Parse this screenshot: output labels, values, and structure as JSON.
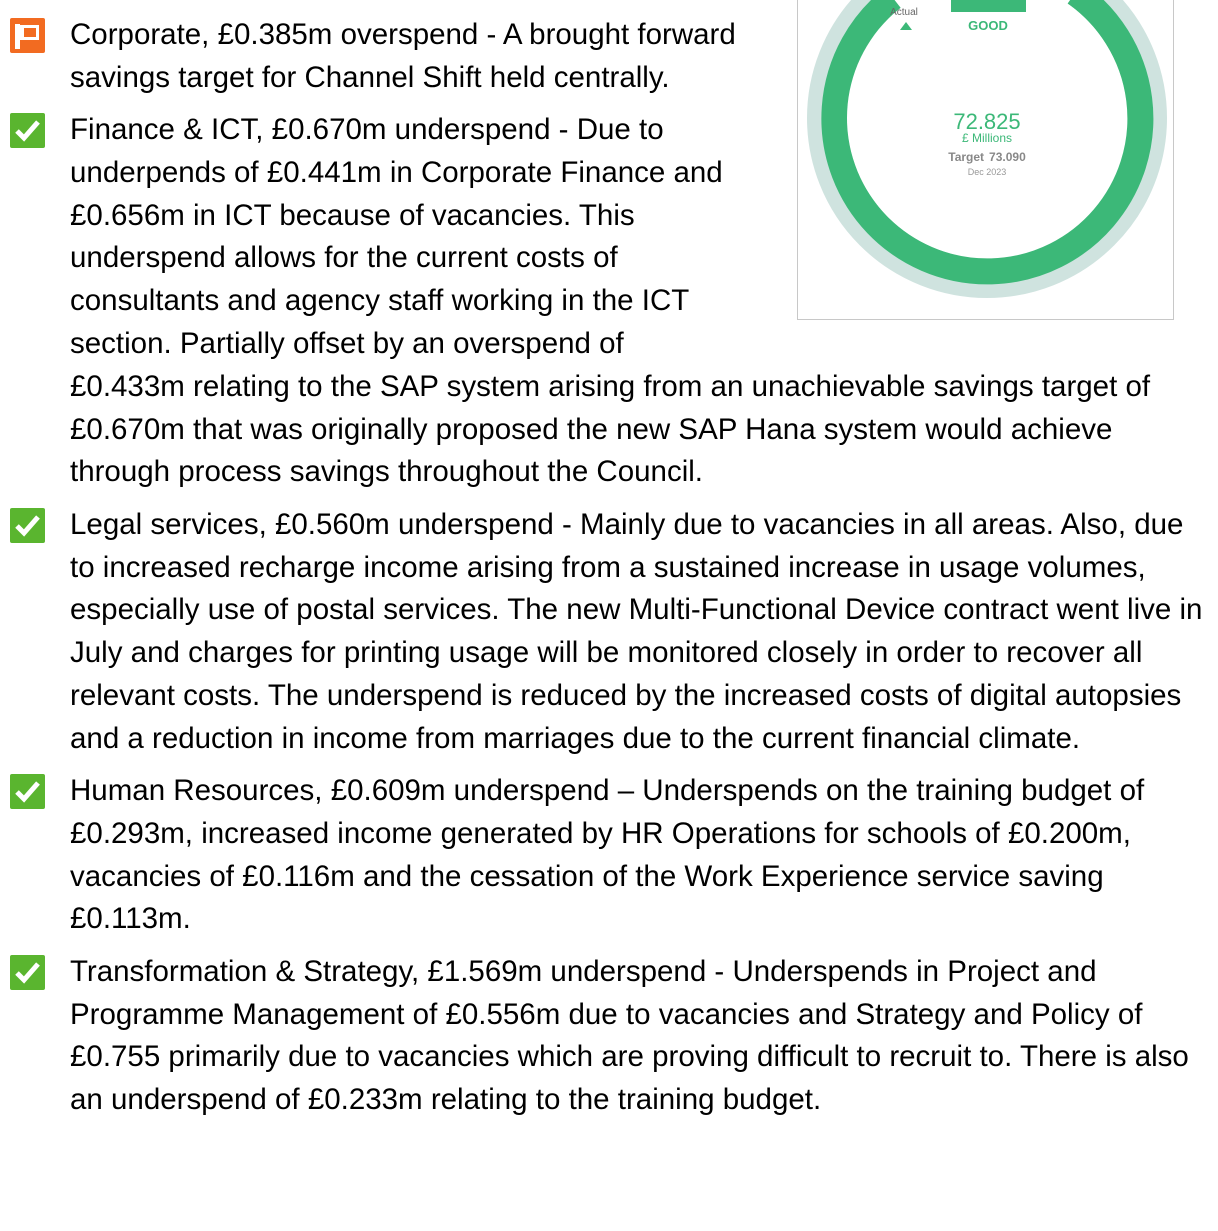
{
  "gauge": {
    "actual_label": "Actual",
    "status": "GOOD",
    "value": "72.825",
    "unit": "£ Millions",
    "target_label": "Target",
    "target": "73.090",
    "period": "Dec 2023"
  },
  "items": [
    {
      "icon": "flag",
      "text": "Corporate, £0.385m overspend - A brought forward savings target for Channel Shift held centrally."
    },
    {
      "icon": "check",
      "text": "Finance & ICT, £0.670m underspend - Due to underpends of £0.441m in Corporate Finance and £0.656m in ICT because of vacancies.  This underspend allows for the current costs of consultants and agency staff working in the ICT section.  Partially offset by an overspend of £0.433m relating to the SAP system arising from an unachievable savings target of £0.670m that was originally proposed the new SAP Hana system would achieve through process savings throughout the Council."
    },
    {
      "icon": "check",
      "text": "Legal services, £0.560m underspend - Mainly due to vacancies in all areas. Also, due to increased recharge income arising from a sustained increase in usage volumes, especially use of postal services. The new Multi-Functional Device contract went live in July and charges for printing usage will be monitored closely in order to recover all relevant costs.  The underspend is reduced by the increased costs of digital autopsies and a reduction in income from marriages due to the current financial climate."
    },
    {
      "icon": "check",
      "text": "Human Resources, £0.609m underspend – Underspends on the training budget of £0.293m, increased income generated by HR Operations for schools of £0.200m, vacancies of £0.116m and the cessation of the Work Experience service saving £0.113m."
    },
    {
      "icon": "check",
      "text": "Transformation & Strategy, £1.569m underspend - Underspends in Project and Programme Management of £0.556m due to vacancies and Strategy and Policy of £0.755 primarily due to vacancies which are proving difficult to recruit to. There is also an underspend of £0.233m relating to the training budget."
    }
  ]
}
